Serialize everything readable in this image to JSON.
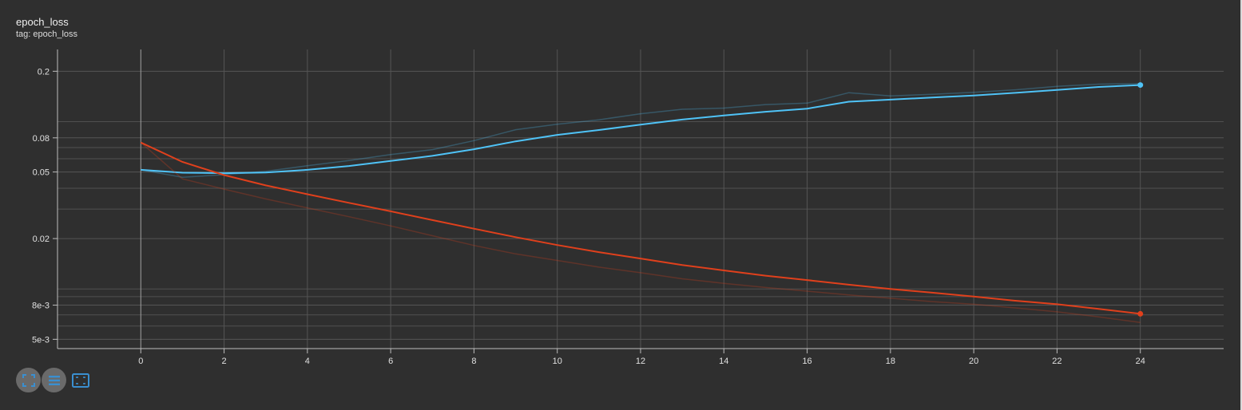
{
  "card": {
    "title": "epoch_loss",
    "tag": "tag: epoch_loss"
  },
  "chart_data": {
    "type": "line",
    "title": "epoch_loss",
    "xlabel": "",
    "ylabel": "",
    "yscale": "log",
    "xlim": [
      -2,
      26
    ],
    "ylim": [
      0.0044,
      0.27
    ],
    "x_ticks": [
      0,
      2,
      4,
      6,
      8,
      10,
      12,
      14,
      16,
      18,
      20,
      22,
      24
    ],
    "y_ticks": [
      {
        "value": 0.2,
        "label": "0.2"
      },
      {
        "value": 0.08,
        "label": "0.08"
      },
      {
        "value": 0.05,
        "label": "0.05"
      },
      {
        "value": 0.02,
        "label": "0.02"
      },
      {
        "value": 0.008,
        "label": "8e-3"
      },
      {
        "value": 0.005,
        "label": "5e-3"
      }
    ],
    "y_minor_gridlines": [
      0.1,
      0.07,
      0.06,
      0.04,
      0.03,
      0.01,
      0.009,
      0.007,
      0.006
    ],
    "grid": true,
    "legend": "none",
    "x": [
      0,
      1,
      2,
      3,
      4,
      5,
      6,
      7,
      8,
      9,
      10,
      11,
      12,
      13,
      14,
      15,
      16,
      17,
      18,
      19,
      20,
      21,
      22,
      23,
      24
    ],
    "series": [
      {
        "color": "#4fc3f7",
        "values": [
          0.0515,
          0.0465,
          0.0482,
          0.0505,
          0.0545,
          0.0585,
          0.0635,
          0.068,
          0.077,
          0.0895,
          0.0965,
          0.1025,
          0.1115,
          0.1185,
          0.1205,
          0.1265,
          0.129,
          0.149,
          0.1425,
          0.1455,
          0.1495,
          0.155,
          0.1625,
          0.1675,
          0.169
        ],
        "smoothed": [
          0.0515,
          0.0495,
          0.0492,
          0.0497,
          0.0515,
          0.0543,
          0.0582,
          0.0624,
          0.0684,
          0.0762,
          0.0833,
          0.0891,
          0.0959,
          0.1029,
          0.1088,
          0.1145,
          0.1196,
          0.1316,
          0.1354,
          0.1394,
          0.1432,
          0.1486,
          0.1546,
          0.1611,
          0.1655
        ]
      },
      {
        "color": "#e0401c",
        "values": [
          0.075,
          0.0455,
          0.0395,
          0.0345,
          0.0305,
          0.027,
          0.0238,
          0.0208,
          0.0182,
          0.0162,
          0.0148,
          0.0135,
          0.0125,
          0.0115,
          0.0108,
          0.0102,
          0.0097,
          0.0092,
          0.0088,
          0.0084,
          0.0081,
          0.0077,
          0.0073,
          0.0068,
          0.0063
        ],
        "smoothed": [
          0.075,
          0.0574,
          0.0479,
          0.0416,
          0.0368,
          0.0327,
          0.0291,
          0.0258,
          0.0229,
          0.0204,
          0.0183,
          0.0166,
          0.0152,
          0.0139,
          0.0129,
          0.012,
          0.0113,
          0.0106,
          0.01,
          0.0095,
          0.009,
          0.0085,
          0.0081,
          0.0076,
          0.0071
        ]
      }
    ]
  },
  "toolbar": {
    "buttons": [
      {
        "name": "fit-domain-button",
        "icon": "fullscreen-icon"
      },
      {
        "name": "toggle-log-scale-button",
        "icon": "list-icon"
      },
      {
        "name": "fit-to-data-button",
        "icon": "fit-screen-icon"
      }
    ]
  }
}
